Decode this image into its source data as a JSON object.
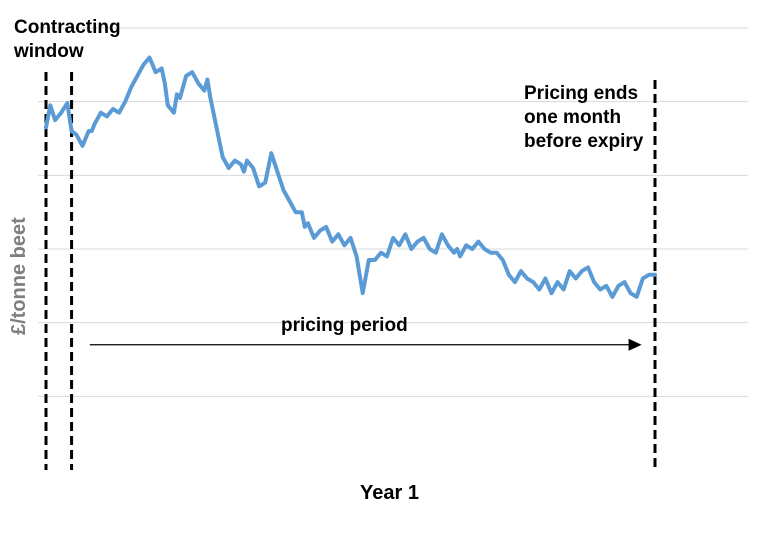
{
  "chart_data": {
    "type": "line",
    "xlabel": "Year 1",
    "ylabel": "£/tonne beet",
    "grid": true,
    "ylim": [
      0,
      6
    ],
    "colors": {
      "line": "#5b9bd5",
      "grid": "#d9d9d9",
      "markers": "#000000"
    },
    "annotations": {
      "contracting_window": [
        "Contracting",
        "window"
      ],
      "pricing_ends": [
        "Pricing ends",
        "one month",
        "before expiry"
      ],
      "pricing_period": "pricing period"
    },
    "markers": [
      {
        "label": "contracting-window-start",
        "x": 0
      },
      {
        "label": "contracting-window-end",
        "x": 4.2
      },
      {
        "label": "pricing-end",
        "x": 100
      }
    ],
    "arrow": {
      "from": 7.2,
      "to": 97.8,
      "y": 1.7
    },
    "series": [
      {
        "x": [
          0,
          0.7,
          1.5,
          2.5,
          3.5,
          4.2,
          5,
          6,
          7,
          7.5,
          8,
          9,
          10,
          11,
          12,
          13,
          14,
          15,
          16,
          17,
          18,
          19,
          19.5,
          20,
          21,
          21.5,
          22,
          23,
          24,
          25,
          26,
          26.5,
          27,
          28,
          29,
          30,
          31,
          32,
          32.5,
          33,
          34,
          35,
          36,
          37,
          38,
          39,
          40,
          41,
          42,
          42.5,
          43,
          44,
          45,
          46,
          47,
          48,
          49,
          50,
          51,
          52,
          53,
          54,
          55,
          56,
          57,
          58,
          59,
          60,
          61,
          62,
          63,
          64,
          65,
          66,
          67,
          67.5,
          68,
          69,
          70,
          71,
          72,
          73,
          74,
          75,
          76,
          77,
          78,
          79,
          80,
          81,
          82,
          83,
          84,
          85,
          86,
          87,
          88,
          89,
          90,
          91,
          92,
          93,
          94,
          95,
          96,
          97,
          98,
          99,
          100
        ],
        "y": [
          4.65,
          4.95,
          4.75,
          4.85,
          4.98,
          4.6,
          4.55,
          4.4,
          4.6,
          4.6,
          4.7,
          4.85,
          4.8,
          4.9,
          4.85,
          5.0,
          5.2,
          5.35,
          5.5,
          5.6,
          5.4,
          5.45,
          5.25,
          4.95,
          4.85,
          5.1,
          5.05,
          5.35,
          5.4,
          5.25,
          5.15,
          5.3,
          5.05,
          4.65,
          4.25,
          4.1,
          4.2,
          4.15,
          4.05,
          4.2,
          4.1,
          3.85,
          3.9,
          4.3,
          4.05,
          3.8,
          3.65,
          3.5,
          3.5,
          3.3,
          3.35,
          3.15,
          3.25,
          3.3,
          3.1,
          3.2,
          3.05,
          3.15,
          2.9,
          2.4,
          2.85,
          2.85,
          2.95,
          2.9,
          3.15,
          3.05,
          3.2,
          3.0,
          3.1,
          3.15,
          3.0,
          2.95,
          3.2,
          3.05,
          2.95,
          3.0,
          2.9,
          3.05,
          3.0,
          3.1,
          3.0,
          2.95,
          2.95,
          2.85,
          2.65,
          2.55,
          2.7,
          2.6,
          2.55,
          2.45,
          2.6,
          2.4,
          2.55,
          2.45,
          2.7,
          2.6,
          2.7,
          2.75,
          2.55,
          2.45,
          2.5,
          2.35,
          2.5,
          2.55,
          2.4,
          2.35,
          2.6,
          2.65,
          2.65
        ]
      }
    ]
  }
}
